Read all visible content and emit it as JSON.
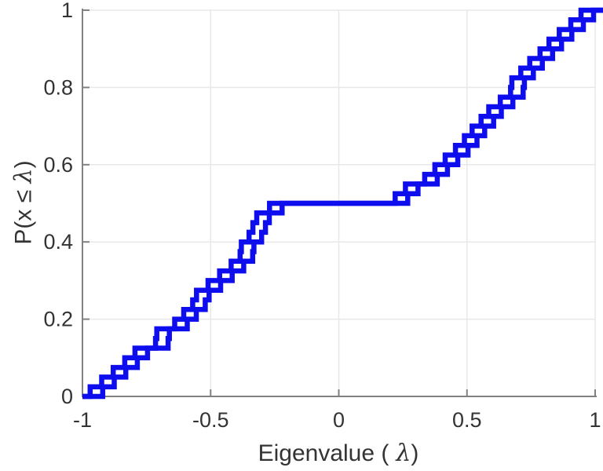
{
  "figure": {
    "background": "#ffffff",
    "title": ""
  },
  "chart_data": {
    "type": "line",
    "subtype": "ecdf-staircase",
    "title": "",
    "xlabel_prefix": "Eigenvalue (",
    "xlabel_symbol": "λ",
    "xlabel_suffix": ")",
    "ylabel_prefix": "P(x ≤ ",
    "ylabel_symbol": "λ",
    "ylabel_suffix": ")",
    "xlim": [
      -1,
      1
    ],
    "ylim": [
      0,
      1
    ],
    "x_ticks": [
      -1,
      -0.5,
      0,
      0.5,
      1
    ],
    "x_tick_labels": [
      "-1",
      "-0.5",
      "0",
      "0.5",
      "1"
    ],
    "y_ticks": [
      0,
      0.2,
      0.4,
      0.6,
      0.8,
      1
    ],
    "y_tick_labels": [
      "0",
      "0.2",
      "0.4",
      "0.6",
      "0.8",
      "1"
    ],
    "grid": true,
    "legend": null,
    "line_color": "#0d0dee",
    "line_width": 6.5,
    "grid_color": "#e8e8e8",
    "axis_color": "#818181",
    "tick_label_color": "#333333",
    "series": [
      {
        "name": "ecdf",
        "description": "Empirical CDF of 40 eigenvalues; flat plateau at P=0.5 between -0.27 and 0.22",
        "eigenvalues": [
          -0.97,
          -0.925,
          -0.88,
          -0.835,
          -0.795,
          -0.715,
          -0.71,
          -0.64,
          -0.605,
          -0.57,
          -0.555,
          -0.51,
          -0.465,
          -0.42,
          -0.385,
          -0.38,
          -0.35,
          -0.335,
          -0.32,
          -0.27,
          0.22,
          0.26,
          0.335,
          0.375,
          0.415,
          0.455,
          0.49,
          0.52,
          0.555,
          0.585,
          0.63,
          0.67,
          0.675,
          0.71,
          0.745,
          0.785,
          0.82,
          0.86,
          0.905,
          0.945
        ]
      },
      {
        "name": "ecdf-shifted",
        "description": "Same staircase re-drawn shifted right by 0.049, creating the hollow-square chain appearance",
        "offset": 0.049
      }
    ]
  }
}
